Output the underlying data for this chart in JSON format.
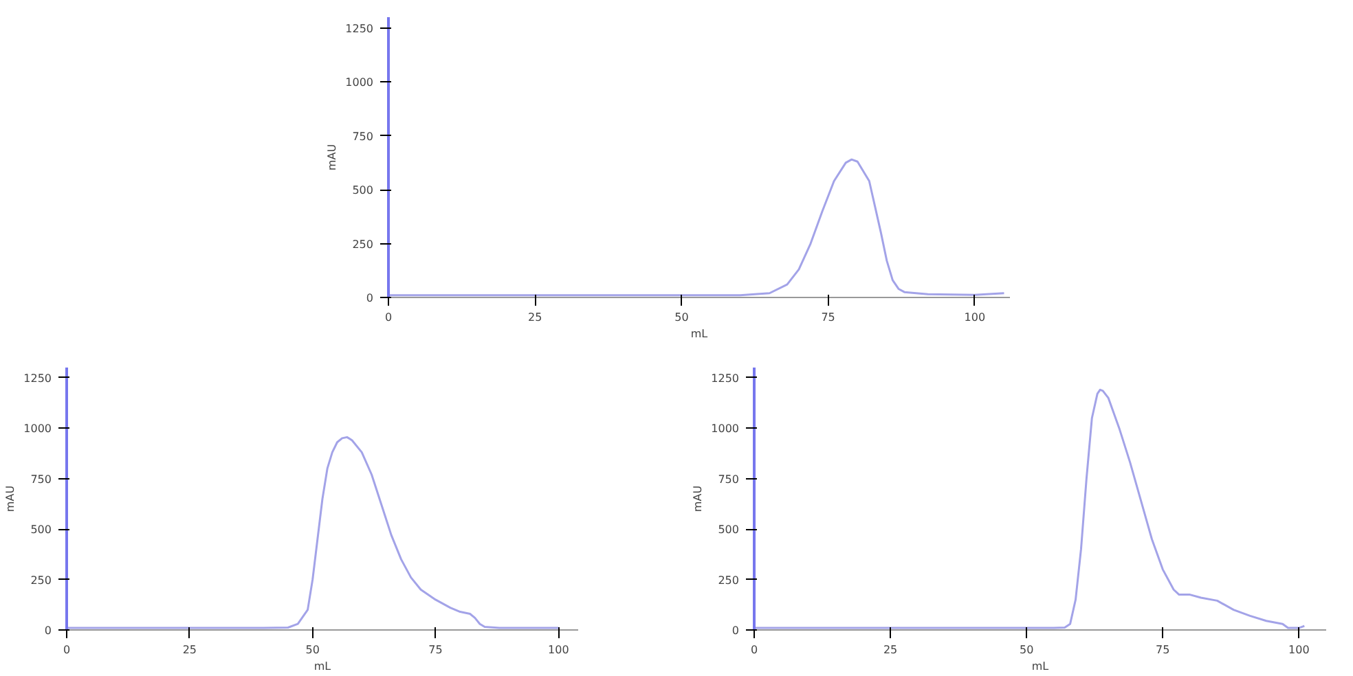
{
  "chart_data": [
    {
      "type": "line",
      "xlabel": "mL",
      "ylabel": "mAU",
      "xlim": [
        0,
        106
      ],
      "ylim": [
        0,
        1300
      ],
      "xticks": [
        0,
        25,
        50,
        75,
        100
      ],
      "yticks": [
        0,
        250,
        500,
        750,
        1000,
        1250
      ],
      "grid": false,
      "series": [
        {
          "color": "#a3a3e8",
          "x": [
            0,
            10,
            20,
            30,
            40,
            50,
            60,
            65,
            68,
            70,
            72,
            74,
            76,
            78,
            79,
            80,
            82,
            83,
            84,
            85,
            86,
            87,
            88,
            92,
            100,
            105
          ],
          "values": [
            10,
            10,
            10,
            10,
            10,
            10,
            10,
            20,
            60,
            130,
            250,
            400,
            540,
            625,
            640,
            630,
            540,
            420,
            300,
            170,
            80,
            40,
            25,
            15,
            12,
            20
          ]
        }
      ]
    },
    {
      "type": "line",
      "xlabel": "mL",
      "ylabel": "mAU",
      "xlim": [
        0,
        104
      ],
      "ylim": [
        0,
        1300
      ],
      "xticks": [
        0,
        25,
        50,
        75,
        100
      ],
      "yticks": [
        0,
        250,
        500,
        750,
        1000,
        1250
      ],
      "grid": false,
      "series": [
        {
          "color": "#a3a3e8",
          "x": [
            0,
            10,
            20,
            30,
            40,
            45,
            47,
            49,
            50,
            51,
            52,
            53,
            54,
            55,
            56,
            57,
            58,
            60,
            62,
            64,
            66,
            68,
            70,
            72,
            75,
            78,
            80,
            82,
            83,
            84,
            85,
            88,
            100
          ],
          "values": [
            10,
            10,
            10,
            10,
            10,
            12,
            30,
            100,
            250,
            450,
            650,
            800,
            880,
            930,
            950,
            955,
            940,
            880,
            770,
            620,
            470,
            350,
            260,
            200,
            150,
            110,
            90,
            80,
            60,
            30,
            15,
            10,
            10
          ]
        }
      ]
    },
    {
      "type": "line",
      "xlabel": "mL",
      "ylabel": "mAU",
      "xlim": [
        0,
        105
      ],
      "ylim": [
        0,
        1300
      ],
      "xticks": [
        0,
        25,
        50,
        75,
        100
      ],
      "yticks": [
        0,
        250,
        500,
        750,
        1000,
        1250
      ],
      "grid": false,
      "series": [
        {
          "color": "#a3a3e8",
          "x": [
            0,
            10,
            20,
            30,
            40,
            50,
            55,
            57,
            58,
            59,
            60,
            61,
            62,
            63,
            63.5,
            64,
            65,
            67,
            69,
            71,
            73,
            75,
            77,
            78,
            80,
            82,
            85,
            88,
            91,
            94,
            97,
            98,
            100,
            101
          ],
          "values": [
            10,
            10,
            10,
            10,
            10,
            10,
            10,
            12,
            30,
            150,
            400,
            750,
            1050,
            1170,
            1190,
            1185,
            1150,
            1000,
            830,
            640,
            450,
            300,
            200,
            175,
            175,
            160,
            145,
            100,
            70,
            45,
            30,
            10,
            10,
            20
          ]
        }
      ]
    }
  ]
}
